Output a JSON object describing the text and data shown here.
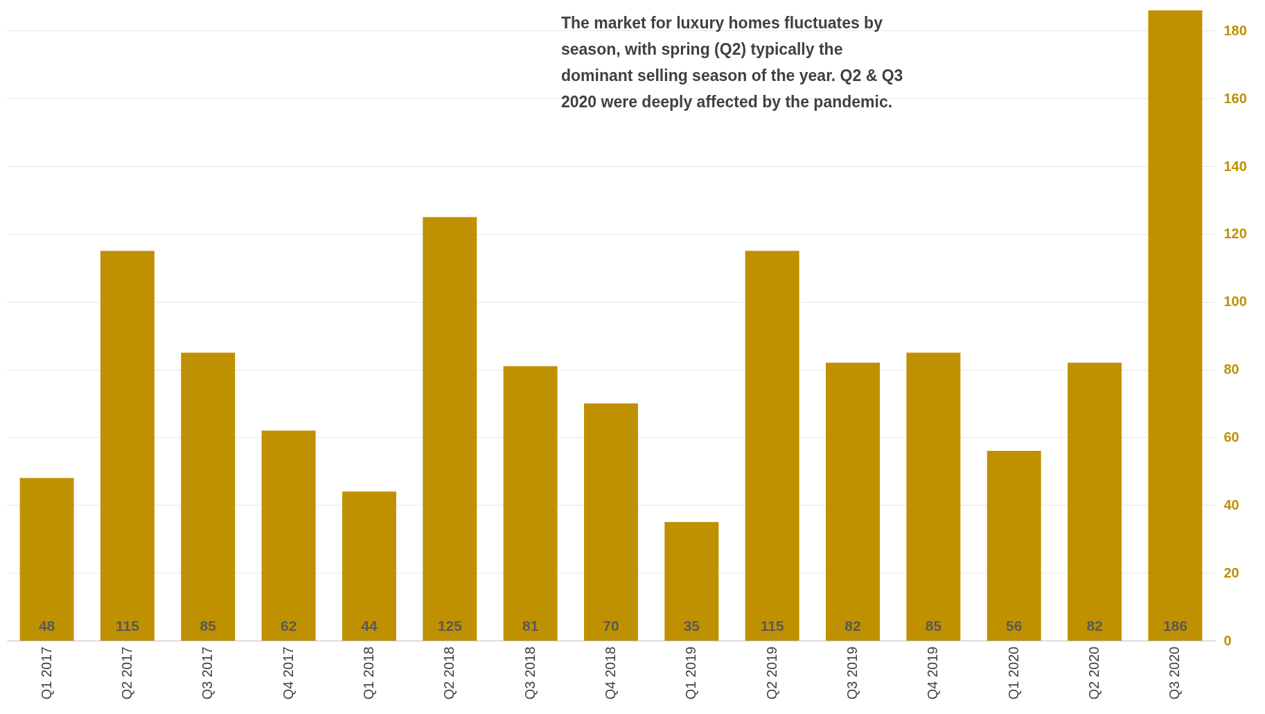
{
  "chart_data": {
    "type": "bar",
    "categories": [
      "Q1 2017",
      "Q2 2017",
      "Q3 2017",
      "Q4 2017",
      "Q1 2018",
      "Q2 2018",
      "Q3 2018",
      "Q4 2018",
      "Q1 2019",
      "Q2 2019",
      "Q3 2019",
      "Q4 2019",
      "Q1 2020",
      "Q2 2020",
      "Q3 2020"
    ],
    "values": [
      48,
      115,
      85,
      62,
      44,
      125,
      81,
      70,
      35,
      115,
      82,
      85,
      56,
      82,
      186
    ],
    "color": "#bf9000",
    "ylim": [
      0,
      186
    ],
    "yticks": [
      0,
      20,
      40,
      60,
      80,
      100,
      120,
      140,
      160,
      180
    ],
    "grid": "y",
    "data_labels": true,
    "annotations": [
      "The market for luxury homes fluctuates by season, with spring (Q2) typically the dominant selling season of the year. Q2 & Q3 2020 were deeply affected by the pandemic."
    ]
  }
}
